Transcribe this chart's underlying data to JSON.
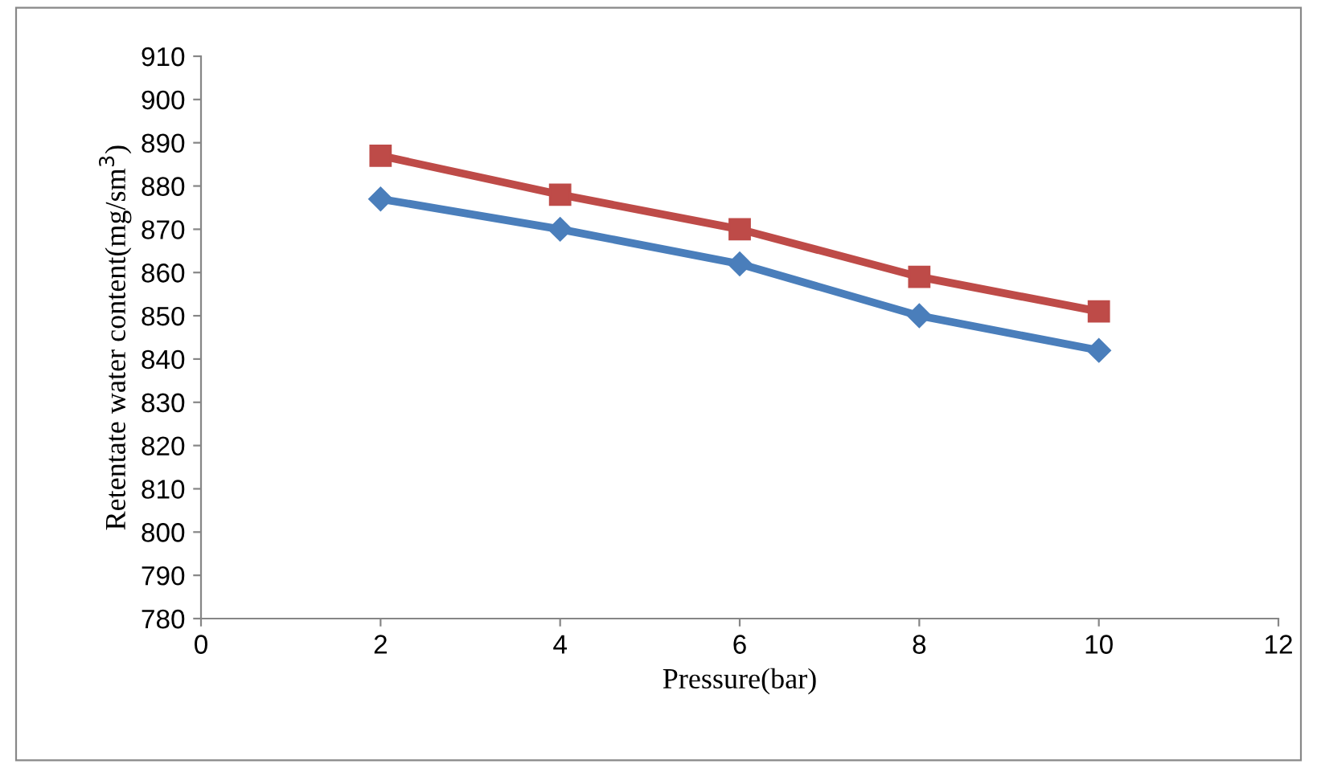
{
  "chart_data": {
    "type": "line",
    "xlabel": "Pressure(bar)",
    "ylabel": "Retentate water content(mg/sm$^{3}$)",
    "x": [
      2,
      4,
      6,
      8,
      10
    ],
    "series": [
      {
        "color": "#4a7ebb",
        "marker": "diamond",
        "values": [
          877,
          870,
          862,
          850,
          842
        ]
      },
      {
        "color": "#be4b48",
        "marker": "square",
        "values": [
          887,
          878,
          870,
          859,
          851
        ]
      }
    ],
    "xlim": [
      0,
      12
    ],
    "xticks": [
      0,
      2,
      4,
      6,
      8,
      10,
      12
    ],
    "ylim": [
      780,
      910
    ],
    "yticks": [
      780,
      790,
      800,
      810,
      820,
      830,
      840,
      850,
      860,
      870,
      880,
      890,
      900,
      910
    ],
    "grid": false,
    "legend": false,
    "line_style": "solid"
  }
}
